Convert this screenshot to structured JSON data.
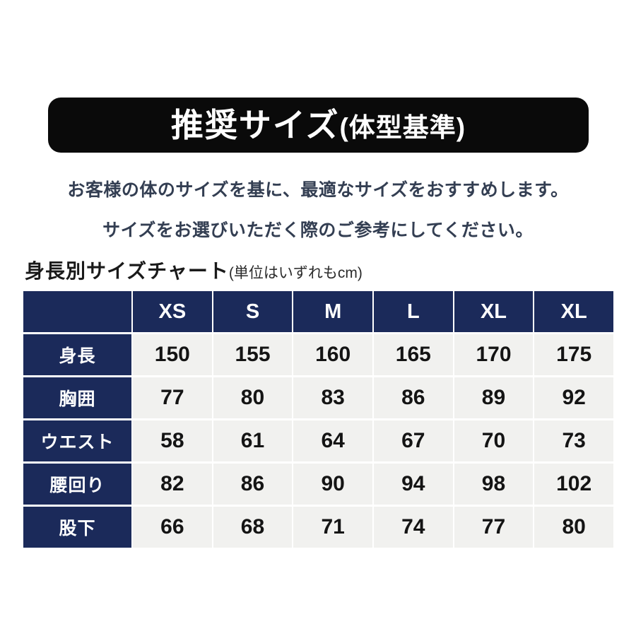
{
  "banner": {
    "title": "推奨サイズ",
    "subtitle": "(体型基準)"
  },
  "intro": {
    "line1": "お客様の体のサイズを基に、最適なサイズをおすすめします。",
    "line2": "サイズをお選びいただく際のご参考にしてください。"
  },
  "chart_data": {
    "type": "table",
    "title": "身長別サイズチャート",
    "unit_note": "(単位はいずれもcm)",
    "unit": "cm",
    "columns": [
      "XS",
      "S",
      "M",
      "L",
      "XL",
      "XL"
    ],
    "rows": [
      {
        "label": "身長",
        "values": [
          150,
          155,
          160,
          165,
          170,
          175
        ]
      },
      {
        "label": "胸囲",
        "values": [
          77,
          80,
          83,
          86,
          89,
          92
        ]
      },
      {
        "label": "ウエスト",
        "values": [
          58,
          61,
          64,
          67,
          70,
          73
        ]
      },
      {
        "label": "腰回り",
        "values": [
          82,
          86,
          90,
          94,
          98,
          102
        ]
      },
      {
        "label": "股下",
        "values": [
          66,
          68,
          71,
          74,
          77,
          80
        ]
      }
    ]
  },
  "colors": {
    "banner_background": "#0a0a0a",
    "table_header_navy": "#1b2a5a",
    "table_cell_gray": "#f1f1ef",
    "intro_text": "#333e52"
  }
}
